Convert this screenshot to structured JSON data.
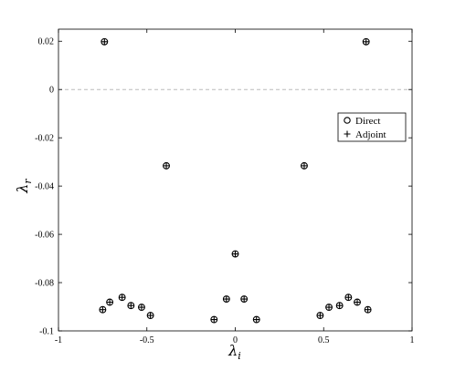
{
  "chart_data": {
    "type": "scatter",
    "title": "",
    "xlabel": "λ",
    "xlabel_sub": "i",
    "ylabel": "λ",
    "ylabel_sub": "r",
    "xlim": [
      -1,
      1
    ],
    "ylim": [
      -0.1,
      0.025
    ],
    "x_ticks": [
      -1,
      -0.5,
      0,
      0.5,
      1
    ],
    "x_tick_labels": [
      "-1",
      "-0.5",
      "0",
      "0.5",
      "1"
    ],
    "y_ticks": [
      0.02,
      0,
      -0.02,
      -0.04,
      -0.06,
      -0.08,
      -0.1
    ],
    "y_tick_labels": [
      "0.02",
      "0",
      "-0.02",
      "-0.04",
      "-0.06",
      "-0.08",
      "-0.1"
    ],
    "reference_line": {
      "y": 0,
      "style": "dashed",
      "color": "#bbbbbb"
    },
    "grid": false,
    "legend_position": "right",
    "series": [
      {
        "name": "Direct",
        "marker": "circle",
        "x": [
          -0.74,
          0.74,
          -0.39,
          0.39,
          0.0,
          -0.75,
          -0.71,
          -0.64,
          -0.59,
          -0.53,
          -0.48,
          -0.12,
          -0.05,
          0.05,
          0.12,
          0.48,
          0.53,
          0.59,
          0.64,
          0.69,
          0.75
        ],
        "y": [
          0.0198,
          0.0198,
          -0.0316,
          -0.0316,
          -0.0681,
          -0.0912,
          -0.0881,
          -0.0861,
          -0.0895,
          -0.0902,
          -0.0936,
          -0.0953,
          -0.0868,
          -0.0868,
          -0.0953,
          -0.0936,
          -0.0902,
          -0.0895,
          -0.0861,
          -0.0881,
          -0.0912
        ]
      },
      {
        "name": "Adjoint",
        "marker": "plus",
        "x": [
          -0.74,
          0.74,
          -0.39,
          0.39,
          0.0,
          -0.75,
          -0.71,
          -0.64,
          -0.59,
          -0.53,
          -0.48,
          -0.12,
          -0.05,
          0.05,
          0.12,
          0.48,
          0.53,
          0.59,
          0.64,
          0.69,
          0.75
        ],
        "y": [
          0.0198,
          0.0198,
          -0.0316,
          -0.0316,
          -0.0681,
          -0.0912,
          -0.0881,
          -0.0861,
          -0.0895,
          -0.0902,
          -0.0936,
          -0.0953,
          -0.0868,
          -0.0868,
          -0.0953,
          -0.0936,
          -0.0902,
          -0.0895,
          -0.0861,
          -0.0881,
          -0.0912
        ]
      }
    ]
  }
}
